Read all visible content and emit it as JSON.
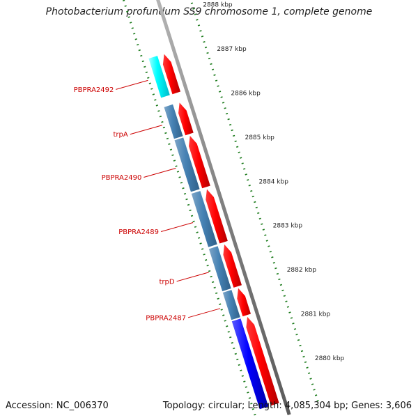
{
  "title": "Photobacterium profundum SS9 chromosome 1, complete genome",
  "footer": {
    "accession": "Accession: NC_006370",
    "summary": "Topology: circular; Length: 4,085,304 bp; Genes: 3,606"
  },
  "scale": {
    "unit": "kbp",
    "ticks": [
      {
        "kbp": 2888,
        "label": "2888 kbp"
      },
      {
        "kbp": 2887,
        "label": "2887 kbp"
      },
      {
        "kbp": 2886,
        "label": "2886 kbp"
      },
      {
        "kbp": 2885,
        "label": "2885 kbp"
      },
      {
        "kbp": 2884,
        "label": "2884 kbp"
      },
      {
        "kbp": 2883,
        "label": "2883 kbp"
      },
      {
        "kbp": 2882,
        "label": "2882 kbp"
      },
      {
        "kbp": 2881,
        "label": "2881 kbp"
      },
      {
        "kbp": 2880,
        "label": "2880 kbp"
      }
    ]
  },
  "genes": [
    {
      "name": "PBPRA2492",
      "label": "PBPRA2492",
      "start": 2886.35,
      "end": 2887.25,
      "cds_color": "#ff0000",
      "product_color": "#00ffff"
    },
    {
      "name": "trpA",
      "label": "trpA",
      "start": 2885.42,
      "end": 2886.15,
      "cds_color": "#ff0000",
      "product_color": "#4682b4"
    },
    {
      "name": "PBPRA2490",
      "label": "PBPRA2490",
      "start": 2884.22,
      "end": 2885.4,
      "cds_color": "#ff0000",
      "product_color": "#4682b4"
    },
    {
      "name": "PBPRA2489",
      "label": "PBPRA2489",
      "start": 2882.97,
      "end": 2884.19,
      "cds_color": "#ff0000",
      "product_color": "#4682b4"
    },
    {
      "name": "trpD",
      "label": "trpD",
      "start": 2881.97,
      "end": 2882.94,
      "cds_color": "#ff0000",
      "product_color": "#4682b4"
    },
    {
      "name": "PBPRA2487",
      "label": "PBPRA2487",
      "start": 2881.32,
      "end": 2881.95,
      "cds_color": "#ff0000",
      "product_color": "#4682b4"
    },
    {
      "name": "blue-gene",
      "label": "",
      "start": 2879.3,
      "end": 2881.3,
      "cds_color": "#ff0000",
      "product_color": "#0000ff"
    }
  ],
  "colors": {
    "backbone": "#808080",
    "tick_mark": "#1a7a1a",
    "gene_label": "#cc0000",
    "label_line": "#cc0000"
  }
}
